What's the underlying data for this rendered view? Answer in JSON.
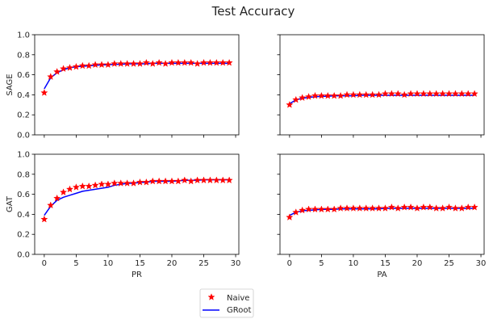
{
  "figure": {
    "title": "Test Accuracy",
    "legend": {
      "position": "bottom-center",
      "entries": [
        "Naive",
        "GRoot"
      ]
    },
    "series_colors": {
      "Naive": "#ff0000",
      "GRoot": "#0000ff"
    },
    "marker_edge_color": "#ff0000"
  },
  "chart_data": [
    {
      "type": "line",
      "row": 0,
      "col": 0,
      "ylabel": "SAGE",
      "xlabel": "",
      "xlim": [
        -1.5,
        30.5
      ],
      "ylim": [
        0,
        1
      ],
      "xticks": [
        0,
        5,
        10,
        15,
        20,
        25,
        30
      ],
      "show_xtick_labels": false,
      "yticks": [
        0.0,
        0.2,
        0.4,
        0.6,
        0.8,
        1.0
      ],
      "show_ytick_labels": true,
      "x": [
        0,
        1,
        2,
        3,
        4,
        5,
        6,
        7,
        8,
        9,
        10,
        11,
        12,
        13,
        14,
        15,
        16,
        17,
        18,
        19,
        20,
        21,
        22,
        23,
        24,
        25,
        26,
        27,
        28,
        29
      ],
      "series": [
        {
          "name": "Naive",
          "style": "star-markers",
          "values": [
            0.42,
            0.58,
            0.63,
            0.66,
            0.67,
            0.68,
            0.69,
            0.69,
            0.7,
            0.7,
            0.7,
            0.71,
            0.71,
            0.71,
            0.71,
            0.71,
            0.72,
            0.71,
            0.72,
            0.71,
            0.72,
            0.72,
            0.72,
            0.72,
            0.71,
            0.72,
            0.72,
            0.72,
            0.72,
            0.72
          ]
        },
        {
          "name": "GRoot",
          "style": "line",
          "values": [
            0.46,
            0.57,
            0.62,
            0.65,
            0.67,
            0.68,
            0.685,
            0.69,
            0.695,
            0.7,
            0.7,
            0.705,
            0.705,
            0.71,
            0.71,
            0.71,
            0.71,
            0.715,
            0.715,
            0.715,
            0.715,
            0.715,
            0.715,
            0.715,
            0.715,
            0.715,
            0.715,
            0.715,
            0.715,
            0.715
          ]
        }
      ]
    },
    {
      "type": "line",
      "row": 0,
      "col": 1,
      "ylabel": "",
      "xlabel": "",
      "xlim": [
        -1.5,
        30.5
      ],
      "ylim": [
        0,
        1
      ],
      "xticks": [
        0,
        5,
        10,
        15,
        20,
        25,
        30
      ],
      "show_xtick_labels": false,
      "yticks": [
        0.0,
        0.2,
        0.4,
        0.6,
        0.8,
        1.0
      ],
      "show_ytick_labels": false,
      "x": [
        0,
        1,
        2,
        3,
        4,
        5,
        6,
        7,
        8,
        9,
        10,
        11,
        12,
        13,
        14,
        15,
        16,
        17,
        18,
        19,
        20,
        21,
        22,
        23,
        24,
        25,
        26,
        27,
        28,
        29
      ],
      "series": [
        {
          "name": "Naive",
          "style": "star-markers",
          "values": [
            0.3,
            0.35,
            0.37,
            0.38,
            0.39,
            0.39,
            0.39,
            0.39,
            0.39,
            0.4,
            0.4,
            0.4,
            0.4,
            0.4,
            0.4,
            0.41,
            0.41,
            0.41,
            0.4,
            0.41,
            0.41,
            0.41,
            0.41,
            0.41,
            0.41,
            0.41,
            0.41,
            0.41,
            0.41,
            0.41
          ]
        },
        {
          "name": "GRoot",
          "style": "line",
          "values": [
            0.31,
            0.35,
            0.365,
            0.375,
            0.38,
            0.385,
            0.385,
            0.39,
            0.39,
            0.39,
            0.39,
            0.395,
            0.395,
            0.395,
            0.395,
            0.395,
            0.395,
            0.395,
            0.395,
            0.395,
            0.395,
            0.395,
            0.395,
            0.395,
            0.395,
            0.395,
            0.395,
            0.395,
            0.395,
            0.395
          ]
        }
      ]
    },
    {
      "type": "line",
      "row": 1,
      "col": 0,
      "ylabel": "GAT",
      "xlabel": "PR",
      "xlim": [
        -1.5,
        30.5
      ],
      "ylim": [
        0,
        1
      ],
      "xticks": [
        0,
        5,
        10,
        15,
        20,
        25,
        30
      ],
      "show_xtick_labels": true,
      "yticks": [
        0.0,
        0.2,
        0.4,
        0.6,
        0.8,
        1.0
      ],
      "show_ytick_labels": true,
      "x": [
        0,
        1,
        2,
        3,
        4,
        5,
        6,
        7,
        8,
        9,
        10,
        11,
        12,
        13,
        14,
        15,
        16,
        17,
        18,
        19,
        20,
        21,
        22,
        23,
        24,
        25,
        26,
        27,
        28,
        29
      ],
      "series": [
        {
          "name": "Naive",
          "style": "star-markers",
          "values": [
            0.35,
            0.49,
            0.56,
            0.62,
            0.65,
            0.67,
            0.68,
            0.68,
            0.69,
            0.7,
            0.7,
            0.71,
            0.71,
            0.71,
            0.71,
            0.72,
            0.72,
            0.73,
            0.73,
            0.73,
            0.73,
            0.73,
            0.74,
            0.73,
            0.74,
            0.74,
            0.74,
            0.74,
            0.74,
            0.74
          ]
        },
        {
          "name": "GRoot",
          "style": "line",
          "values": [
            0.39,
            0.48,
            0.54,
            0.57,
            0.59,
            0.61,
            0.63,
            0.64,
            0.65,
            0.66,
            0.67,
            0.69,
            0.7,
            0.71,
            0.71,
            0.72,
            0.72,
            0.73,
            0.73,
            0.73,
            0.73,
            0.735,
            0.74,
            0.74,
            0.74,
            0.745,
            0.745,
            0.745,
            0.745,
            0.745
          ]
        }
      ]
    },
    {
      "type": "line",
      "row": 1,
      "col": 1,
      "ylabel": "",
      "xlabel": "PA",
      "xlim": [
        -1.5,
        30.5
      ],
      "ylim": [
        0,
        1
      ],
      "xticks": [
        0,
        5,
        10,
        15,
        20,
        25,
        30
      ],
      "show_xtick_labels": true,
      "yticks": [
        0.0,
        0.2,
        0.4,
        0.6,
        0.8,
        1.0
      ],
      "show_ytick_labels": false,
      "x": [
        0,
        1,
        2,
        3,
        4,
        5,
        6,
        7,
        8,
        9,
        10,
        11,
        12,
        13,
        14,
        15,
        16,
        17,
        18,
        19,
        20,
        21,
        22,
        23,
        24,
        25,
        26,
        27,
        28,
        29
      ],
      "series": [
        {
          "name": "Naive",
          "style": "star-markers",
          "values": [
            0.37,
            0.42,
            0.44,
            0.45,
            0.45,
            0.45,
            0.45,
            0.45,
            0.46,
            0.46,
            0.46,
            0.46,
            0.46,
            0.46,
            0.46,
            0.46,
            0.47,
            0.46,
            0.47,
            0.47,
            0.46,
            0.47,
            0.47,
            0.46,
            0.46,
            0.47,
            0.46,
            0.46,
            0.47,
            0.47
          ]
        },
        {
          "name": "GRoot",
          "style": "line",
          "values": [
            0.39,
            0.42,
            0.435,
            0.44,
            0.445,
            0.45,
            0.45,
            0.45,
            0.455,
            0.455,
            0.455,
            0.455,
            0.455,
            0.455,
            0.455,
            0.46,
            0.46,
            0.46,
            0.46,
            0.46,
            0.46,
            0.46,
            0.46,
            0.46,
            0.46,
            0.46,
            0.46,
            0.46,
            0.46,
            0.46
          ]
        }
      ]
    }
  ]
}
